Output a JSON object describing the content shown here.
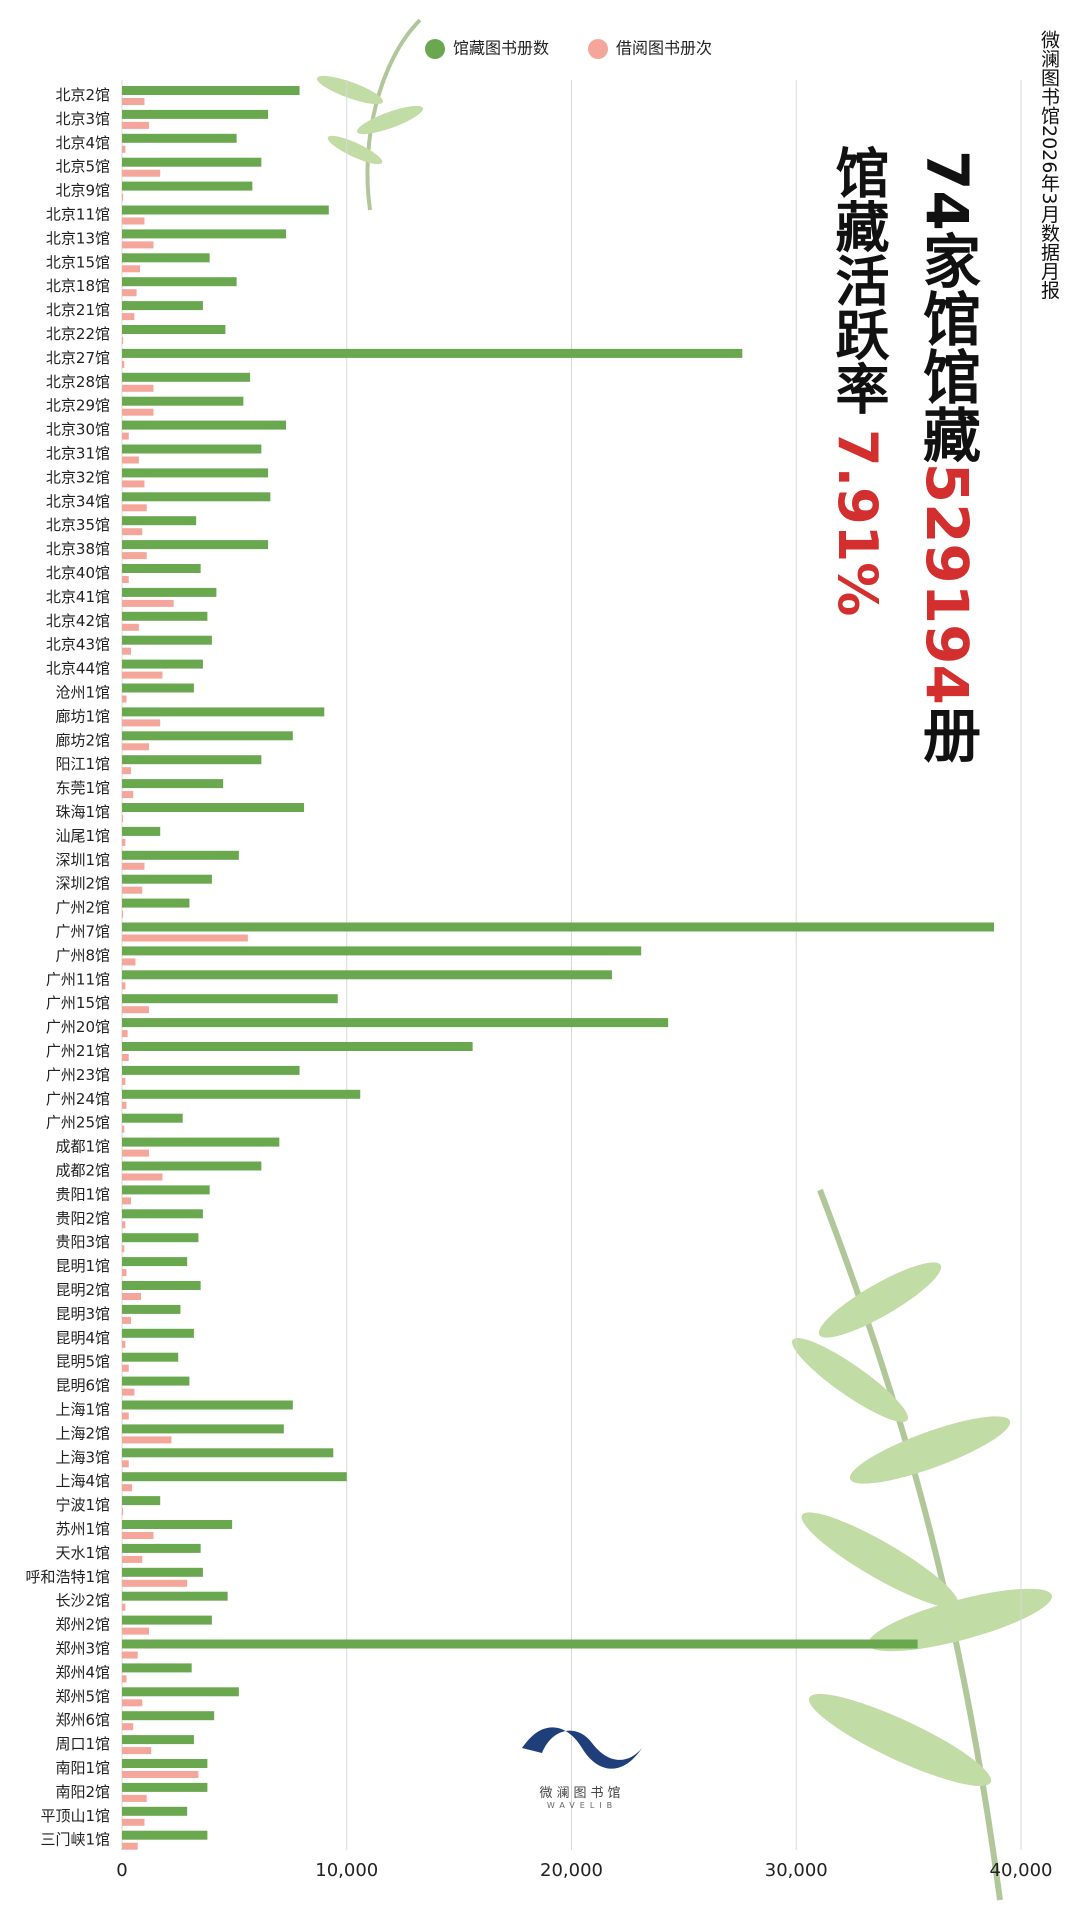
{
  "chart_data": {
    "type": "bar",
    "report_title": "微澜图书馆2026年3月数据月报",
    "headline": {
      "prefix": "74家馆馆藏",
      "number": "529194",
      "suffix": "册"
    },
    "rate": {
      "label": "馆藏活跃率",
      "value": "7.91%"
    },
    "logo": {
      "name": "微澜图书馆",
      "latin": "WAVELIB"
    },
    "categories": [
      "北京2馆",
      "北京3馆",
      "北京4馆",
      "北京5馆",
      "北京9馆",
      "北京11馆",
      "北京13馆",
      "北京15馆",
      "北京18馆",
      "北京21馆",
      "北京22馆",
      "北京27馆",
      "北京28馆",
      "北京29馆",
      "北京30馆",
      "北京31馆",
      "北京32馆",
      "北京34馆",
      "北京35馆",
      "北京38馆",
      "北京40馆",
      "北京41馆",
      "北京42馆",
      "北京43馆",
      "北京44馆",
      "沧州1馆",
      "廊坊1馆",
      "廊坊2馆",
      "阳江1馆",
      "东莞1馆",
      "珠海1馆",
      "汕尾1馆",
      "深圳1馆",
      "深圳2馆",
      "广州2馆",
      "广州7馆",
      "广州8馆",
      "广州11馆",
      "广州15馆",
      "广州20馆",
      "广州21馆",
      "广州23馆",
      "广州24馆",
      "广州25馆",
      "成都1馆",
      "成都2馆",
      "贵阳1馆",
      "贵阳2馆",
      "贵阳3馆",
      "昆明1馆",
      "昆明2馆",
      "昆明3馆",
      "昆明4馆",
      "昆明5馆",
      "昆明6馆",
      "上海1馆",
      "上海2馆",
      "上海3馆",
      "上海4馆",
      "宁波1馆",
      "苏州1馆",
      "天水1馆",
      "呼和浩特1馆",
      "长沙2馆",
      "郑州2馆",
      "郑州3馆",
      "郑州4馆",
      "郑州5馆",
      "郑州6馆",
      "周口1馆",
      "南阳1馆",
      "南阳2馆",
      "平顶山1馆",
      "三门峡1馆"
    ],
    "series": [
      {
        "name": "馆藏图书册数",
        "color": "#6aa84f",
        "values": [
          7900,
          6500,
          5100,
          6200,
          5800,
          9200,
          7300,
          3900,
          5100,
          3600,
          4600,
          27600,
          5700,
          5400,
          7300,
          6200,
          6500,
          6600,
          3300,
          6500,
          3500,
          4200,
          3800,
          4000,
          3600,
          3200,
          9000,
          7600,
          6200,
          4500,
          8100,
          1700,
          5200,
          4000,
          3000,
          38800,
          23100,
          21800,
          9600,
          24300,
          15600,
          7900,
          10600,
          2700,
          7000,
          6200,
          3900,
          3600,
          3400,
          2900,
          3500,
          2600,
          3200,
          2500,
          3000,
          7600,
          7200,
          9400,
          10000,
          1700,
          4900,
          3500,
          3600,
          4700,
          4000,
          35400,
          3100,
          5200,
          4100,
          3200,
          3800,
          3800,
          2900,
          3800
        ]
      },
      {
        "name": "借阅图书册次",
        "color": "#f4a69a",
        "values": [
          1000,
          1200,
          150,
          1700,
          50,
          1000,
          1400,
          800,
          650,
          550,
          50,
          100,
          1400,
          1400,
          300,
          750,
          1000,
          1100,
          900,
          1100,
          300,
          2300,
          750,
          400,
          1800,
          200,
          1700,
          1200,
          400,
          500,
          50,
          150,
          1000,
          900,
          50,
          5600,
          600,
          150,
          1200,
          250,
          300,
          150,
          200,
          100,
          1200,
          1800,
          400,
          150,
          100,
          200,
          850,
          400,
          150,
          300,
          550,
          300,
          2200,
          300,
          450,
          50,
          1400,
          900,
          2900,
          150,
          1200,
          700,
          200,
          900,
          500,
          1300,
          3400,
          1100,
          1000,
          700
        ]
      }
    ],
    "xlim": [
      0,
      40000
    ],
    "xticks": [
      0,
      {
        "value": 10000,
        "label": "10,000"
      },
      {
        "value": 20000,
        "label": "20,000"
      },
      {
        "value": 30000,
        "label": "30,000"
      },
      {
        "value": 40000,
        "label": "40,000"
      }
    ],
    "grid": true
  }
}
